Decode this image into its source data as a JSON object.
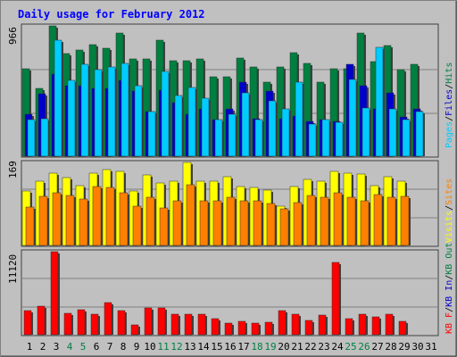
{
  "chart_data": [
    {
      "type": "bar",
      "title": "Daily usage for February 2012",
      "ylabel_top_value": "966",
      "legend": [
        {
          "label": "Pages",
          "color": "#00ccff"
        },
        {
          "label": "Files",
          "color": "#0000cc"
        },
        {
          "label": "Hits",
          "color": "#008040"
        }
      ],
      "categories": [
        "1",
        "2",
        "3",
        "4",
        "5",
        "6",
        "7",
        "8",
        "9",
        "10",
        "11",
        "12",
        "13",
        "14",
        "15",
        "16",
        "17",
        "18",
        "19",
        "20",
        "21",
        "22",
        "23",
        "24",
        "25",
        "26",
        "27",
        "28",
        "29",
        "30",
        "31"
      ],
      "ylim": [
        0,
        966
      ],
      "series": [
        {
          "name": "Hits",
          "values": [
            650,
            500,
            966,
            760,
            790,
            830,
            800,
            910,
            720,
            720,
            860,
            710,
            710,
            720,
            590,
            590,
            730,
            660,
            550,
            660,
            770,
            690,
            550,
            650,
            650,
            910,
            700,
            820,
            640,
            680,
            0
          ]
        },
        {
          "name": "Files",
          "values": [
            310,
            460,
            610,
            520,
            520,
            500,
            500,
            560,
            480,
            330,
            490,
            400,
            310,
            350,
            270,
            350,
            550,
            280,
            480,
            280,
            300,
            260,
            270,
            260,
            680,
            520,
            350,
            470,
            290,
            350,
            0
          ]
        },
        {
          "name": "Pages",
          "values": [
            270,
            280,
            860,
            560,
            680,
            640,
            660,
            690,
            520,
            330,
            630,
            450,
            510,
            430,
            270,
            310,
            470,
            270,
            410,
            350,
            550,
            240,
            270,
            250,
            570,
            360,
            810,
            350,
            270,
            330,
            0
          ]
        }
      ]
    },
    {
      "type": "bar",
      "ylabel_top_value": "169",
      "legend": [
        {
          "label": "Visits",
          "color": "#ffff00"
        },
        {
          "label": "Sites",
          "color": "#ff8000"
        }
      ],
      "categories": [
        "1",
        "2",
        "3",
        "4",
        "5",
        "6",
        "7",
        "8",
        "9",
        "10",
        "11",
        "12",
        "13",
        "14",
        "15",
        "16",
        "17",
        "18",
        "19",
        "20",
        "21",
        "22",
        "23",
        "24",
        "25",
        "26",
        "27",
        "28",
        "29",
        "30",
        "31"
      ],
      "ylim": [
        0,
        169
      ],
      "series": [
        {
          "name": "Visits",
          "values": [
            110,
            130,
            148,
            138,
            122,
            148,
            155,
            150,
            110,
            143,
            128,
            130,
            169,
            130,
            130,
            140,
            120,
            118,
            112,
            80,
            120,
            135,
            130,
            150,
            148,
            145,
            122,
            140,
            130,
            0,
            0
          ]
        },
        {
          "name": "Sites",
          "values": [
            78,
            100,
            108,
            102,
            94,
            120,
            118,
            108,
            80,
            98,
            76,
            90,
            124,
            90,
            90,
            98,
            90,
            90,
            86,
            74,
            88,
            102,
            98,
            108,
            98,
            90,
            104,
            98,
            100,
            0,
            0
          ]
        }
      ]
    },
    {
      "type": "bar",
      "ylabel_top_value": "11120",
      "legend": [
        {
          "label": "KB F",
          "color": "#ff0000"
        },
        {
          "label": "KB In",
          "color": "#0000cc"
        },
        {
          "label": "KB Out",
          "color": "#008040"
        }
      ],
      "categories": [
        "1",
        "2",
        "3",
        "4",
        "5",
        "6",
        "7",
        "8",
        "9",
        "10",
        "11",
        "12",
        "13",
        "14",
        "15",
        "16",
        "17",
        "18",
        "19",
        "20",
        "21",
        "22",
        "23",
        "24",
        "25",
        "26",
        "27",
        "28",
        "29",
        "30",
        "31"
      ],
      "ylim": [
        0,
        11120
      ],
      "series": [
        {
          "name": "KB F",
          "values": [
            3200,
            3800,
            11120,
            2900,
            3300,
            2700,
            4300,
            3200,
            1300,
            3600,
            3600,
            2700,
            2800,
            2800,
            2200,
            1600,
            1800,
            1500,
            1700,
            3200,
            2800,
            1900,
            2600,
            9700,
            2100,
            2800,
            2400,
            2700,
            1800,
            0,
            0
          ]
        }
      ]
    }
  ],
  "colors": {
    "background": "#c0c0c0",
    "grid": "#808080",
    "title": "#0000ff",
    "weekday": "#000000",
    "weekend": "#008040"
  },
  "weekend_days": [
    "4",
    "5",
    "11",
    "12",
    "18",
    "19",
    "25",
    "26"
  ]
}
